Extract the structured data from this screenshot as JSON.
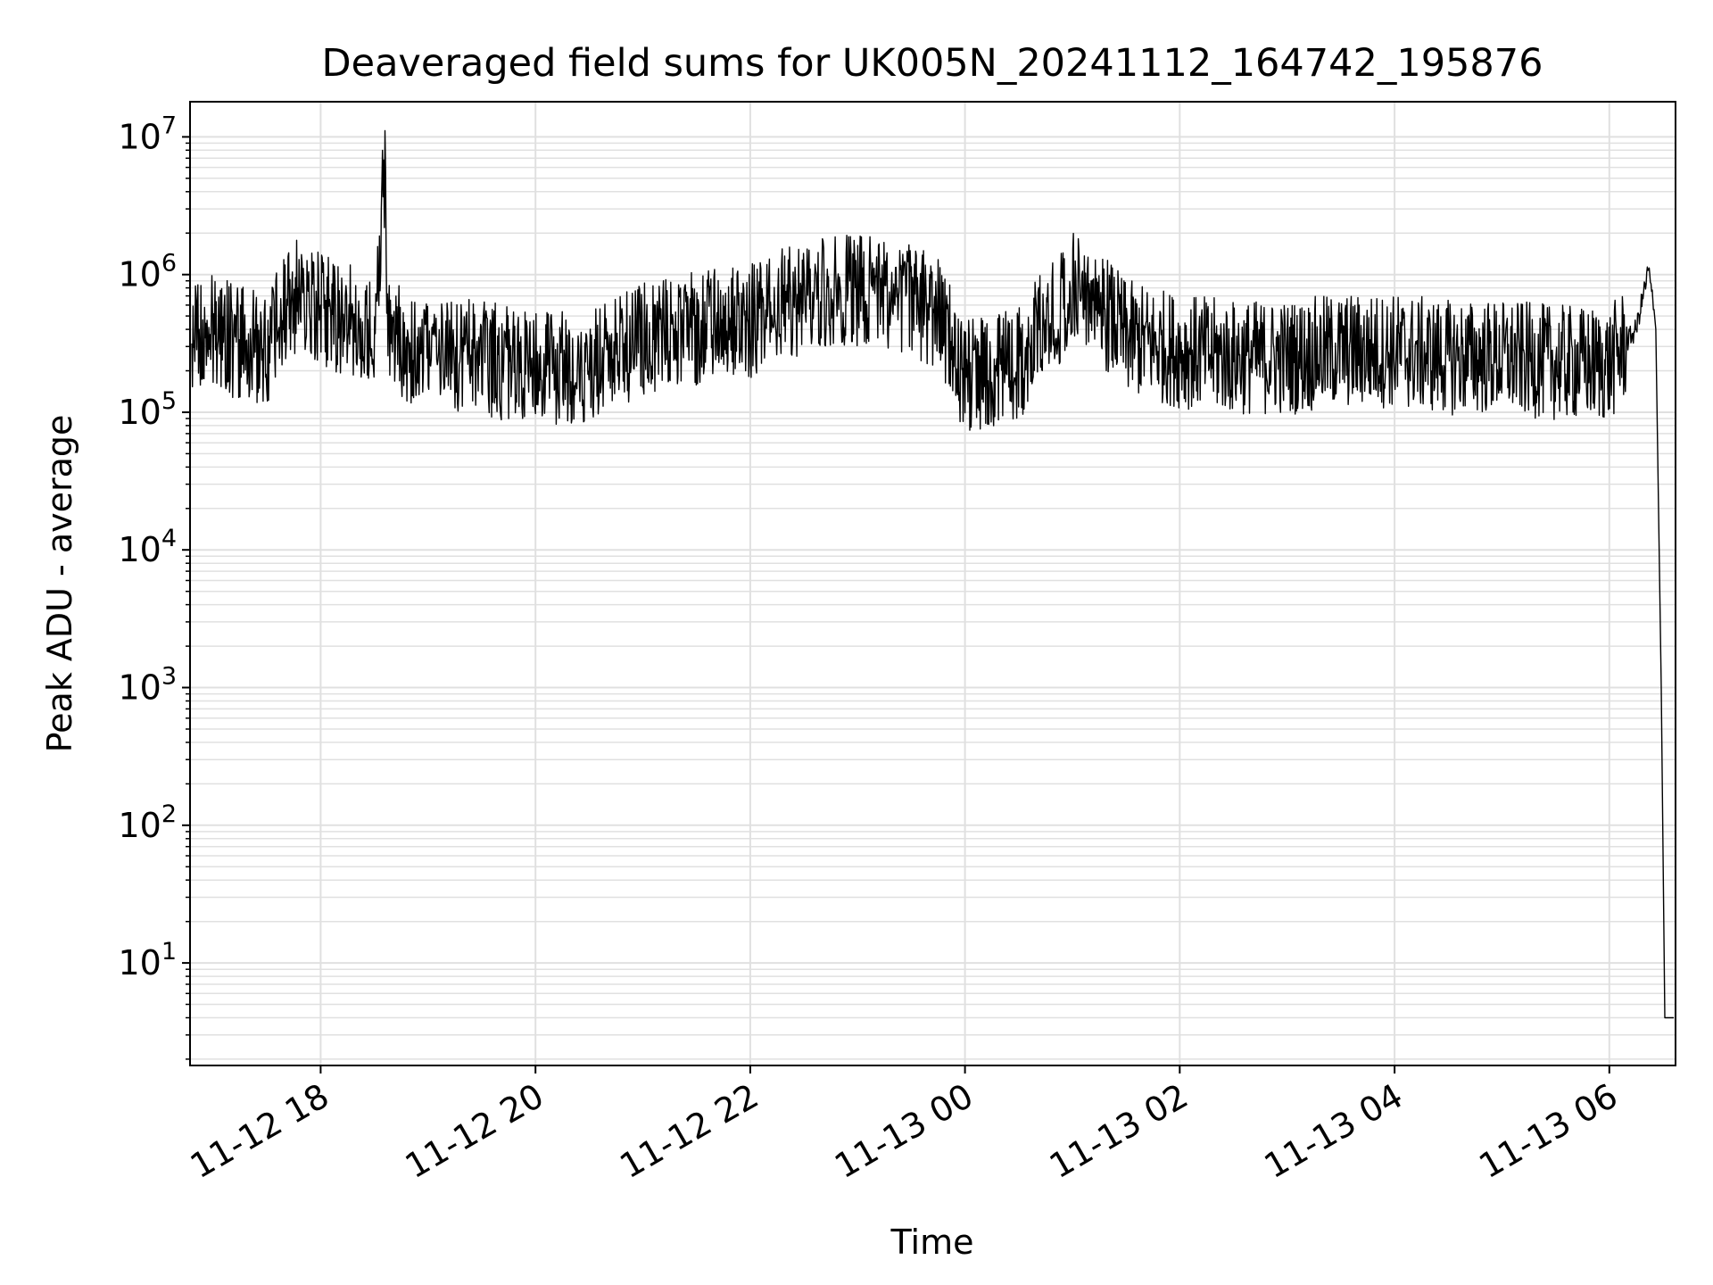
{
  "chart_data": {
    "type": "line",
    "title": "Deaveraged field sums for UK005N_20241112_164742_195876",
    "xlabel": "Time",
    "ylabel": "Peak ADU - average",
    "y_scale": "log",
    "grid": true,
    "legend": "none",
    "line_color": "#000000",
    "grid_color": "#e0e0e0",
    "xlim": [
      "2024-11-12T16:47",
      "2024-11-13T06:37"
    ],
    "ylim": [
      1.8,
      18000000
    ],
    "x_ticks": [
      {
        "value": "2024-11-12T18:00",
        "label": "11-12 18"
      },
      {
        "value": "2024-11-12T20:00",
        "label": "11-12 20"
      },
      {
        "value": "2024-11-12T22:00",
        "label": "11-12 22"
      },
      {
        "value": "2024-11-13T00:00",
        "label": "11-13 00"
      },
      {
        "value": "2024-11-13T02:00",
        "label": "11-13 02"
      },
      {
        "value": "2024-11-13T04:00",
        "label": "11-13 04"
      },
      {
        "value": "2024-11-13T06:00",
        "label": "11-13 06"
      }
    ],
    "y_ticks": [
      {
        "value": 10,
        "base": "10",
        "exp": "1"
      },
      {
        "value": 100,
        "base": "10",
        "exp": "2"
      },
      {
        "value": 1000,
        "base": "10",
        "exp": "3"
      },
      {
        "value": 10000,
        "base": "10",
        "exp": "4"
      },
      {
        "value": 100000,
        "base": "10",
        "exp": "5"
      },
      {
        "value": 1000000,
        "base": "10",
        "exp": "6"
      },
      {
        "value": 10000000,
        "base": "10",
        "exp": "7"
      }
    ],
    "series": [
      {
        "x": [
          "2024-11-12T16:48",
          "2024-11-12T17:00",
          "2024-11-12T17:15",
          "2024-11-12T17:30",
          "2024-11-12T17:45",
          "2024-11-12T18:00",
          "2024-11-12T18:30",
          "2024-11-12T18:36",
          "2024-11-12T18:37",
          "2024-11-12T18:45",
          "2024-11-12T19:00",
          "2024-11-12T19:30",
          "2024-11-12T20:00",
          "2024-11-12T20:30",
          "2024-11-12T21:00",
          "2024-11-12T21:30",
          "2024-11-12T22:00",
          "2024-11-12T22:30",
          "2024-11-12T23:00",
          "2024-11-12T23:30",
          "2024-11-12T23:45",
          "2024-11-13T00:00",
          "2024-11-13T00:30",
          "2024-11-13T01:00",
          "2024-11-13T01:15",
          "2024-11-13T01:30",
          "2024-11-13T02:00",
          "2024-11-13T02:30",
          "2024-11-13T03:00",
          "2024-11-13T03:30",
          "2024-11-13T04:00",
          "2024-11-13T04:30",
          "2024-11-13T05:00",
          "2024-11-13T05:30",
          "2024-11-13T06:00",
          "2024-11-13T06:15",
          "2024-11-13T06:22",
          "2024-11-13T06:26",
          "2024-11-13T06:29",
          "2024-11-13T06:31",
          "2024-11-13T06:33",
          "2024-11-13T06:36"
        ],
        "y": [
          350000,
          380000,
          320000,
          300000,
          700000,
          550000,
          400000,
          6000000,
          450000,
          300000,
          260000,
          250000,
          200000,
          220000,
          350000,
          400000,
          450000,
          700000,
          800000,
          700000,
          500000,
          180000,
          230000,
          800000,
          600000,
          350000,
          280000,
          250000,
          250000,
          280000,
          280000,
          250000,
          250000,
          230000,
          220000,
          400000,
          1100000,
          400000,
          1000,
          4,
          4,
          4
        ]
      }
    ]
  }
}
